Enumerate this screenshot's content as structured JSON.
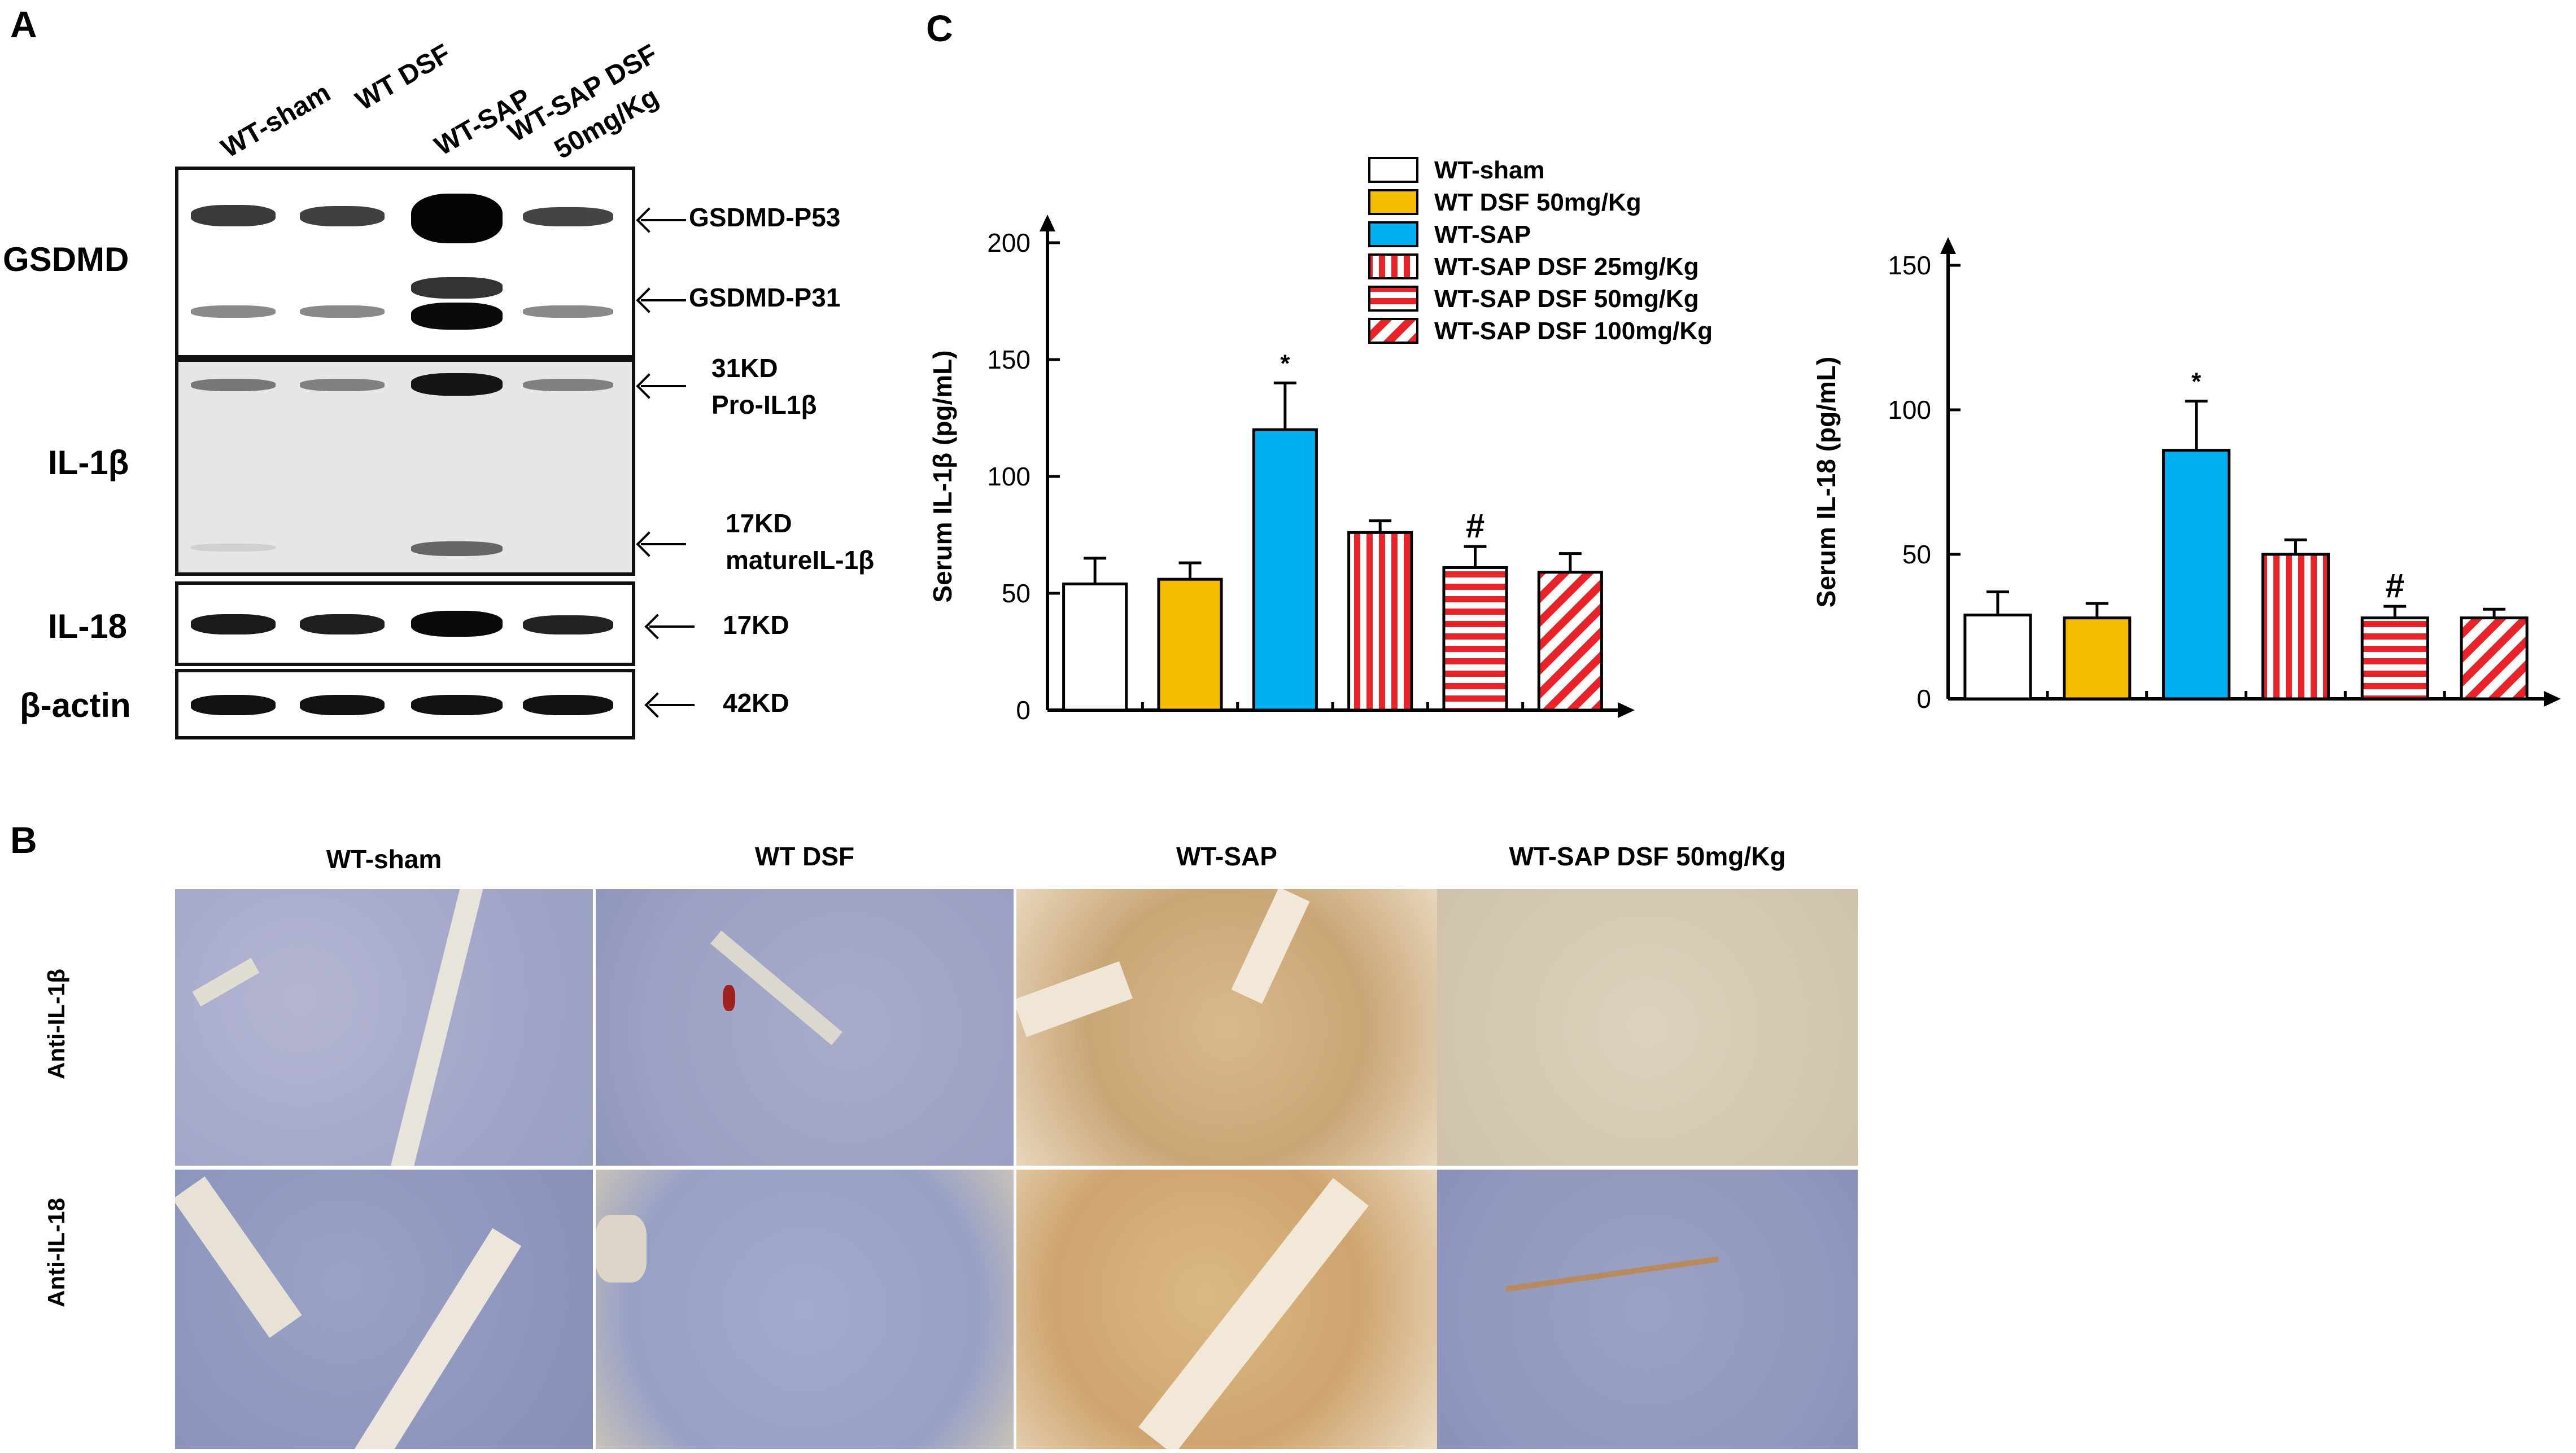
{
  "panel_a": {
    "letter": "A",
    "lanes": [
      "WT-sham",
      "WT DSF",
      "WT-SAP",
      "WT-SAP DSF",
      "50mg/Kg"
    ],
    "rows": [
      "GSDMD",
      "IL-1β",
      "IL-18",
      "β-actin"
    ],
    "annotations": {
      "p53": "GSDMD-P53",
      "p31": "GSDMD-P31",
      "il1b_pro_kd": "31KD",
      "il1b_pro": "Pro-IL1β",
      "il1b_mat_kd": "17KD",
      "il1b_mat": "matureIL-1β",
      "il18": "17KD",
      "actin": "42KD"
    }
  },
  "panel_b": {
    "letter": "B",
    "columns": [
      "WT-sham",
      "WT DSF",
      "WT-SAP",
      "WT-SAP DSF  50mg/Kg"
    ],
    "rows": [
      "Anti-IL-1β",
      "Anti-IL-18"
    ]
  },
  "panel_c": {
    "letter": "C"
  },
  "legend": [
    {
      "label": "WT-sham",
      "pattern": "white"
    },
    {
      "label": "WT DSF 50mg/Kg",
      "pattern": "yellow"
    },
    {
      "label": "WT-SAP",
      "pattern": "blue"
    },
    {
      "label": "WT-SAP DSF 25mg/Kg",
      "pattern": "vertical"
    },
    {
      "label": "WT-SAP DSF 50mg/Kg",
      "pattern": "horizontal"
    },
    {
      "label": "WT-SAP DSF 100mg/Kg",
      "pattern": "diagonal"
    }
  ],
  "colors": {
    "yellow": "#f5bd00",
    "blue": "#00b0f0",
    "red": "#e8242a"
  },
  "chart_data": [
    {
      "type": "bar",
      "ylabel": "Serum IL-1β (pg/mL)",
      "ylim": [
        0,
        200
      ],
      "yticks": [
        0,
        50,
        100,
        150,
        200
      ],
      "values": [
        54,
        56,
        120,
        76,
        61,
        59
      ],
      "errors": [
        11,
        7,
        20,
        5,
        9,
        8
      ],
      "marks": [
        "",
        "",
        "*",
        "",
        "#",
        ""
      ]
    },
    {
      "type": "bar",
      "ylabel": "Serum IL-18 (pg/mL)",
      "ylim": [
        0,
        150
      ],
      "yticks": [
        0,
        50,
        100,
        150
      ],
      "values": [
        29,
        28,
        86,
        50,
        28,
        28
      ],
      "errors": [
        8,
        5,
        17,
        5,
        4,
        3
      ],
      "marks": [
        "",
        "",
        "*",
        "",
        "#",
        ""
      ]
    }
  ]
}
